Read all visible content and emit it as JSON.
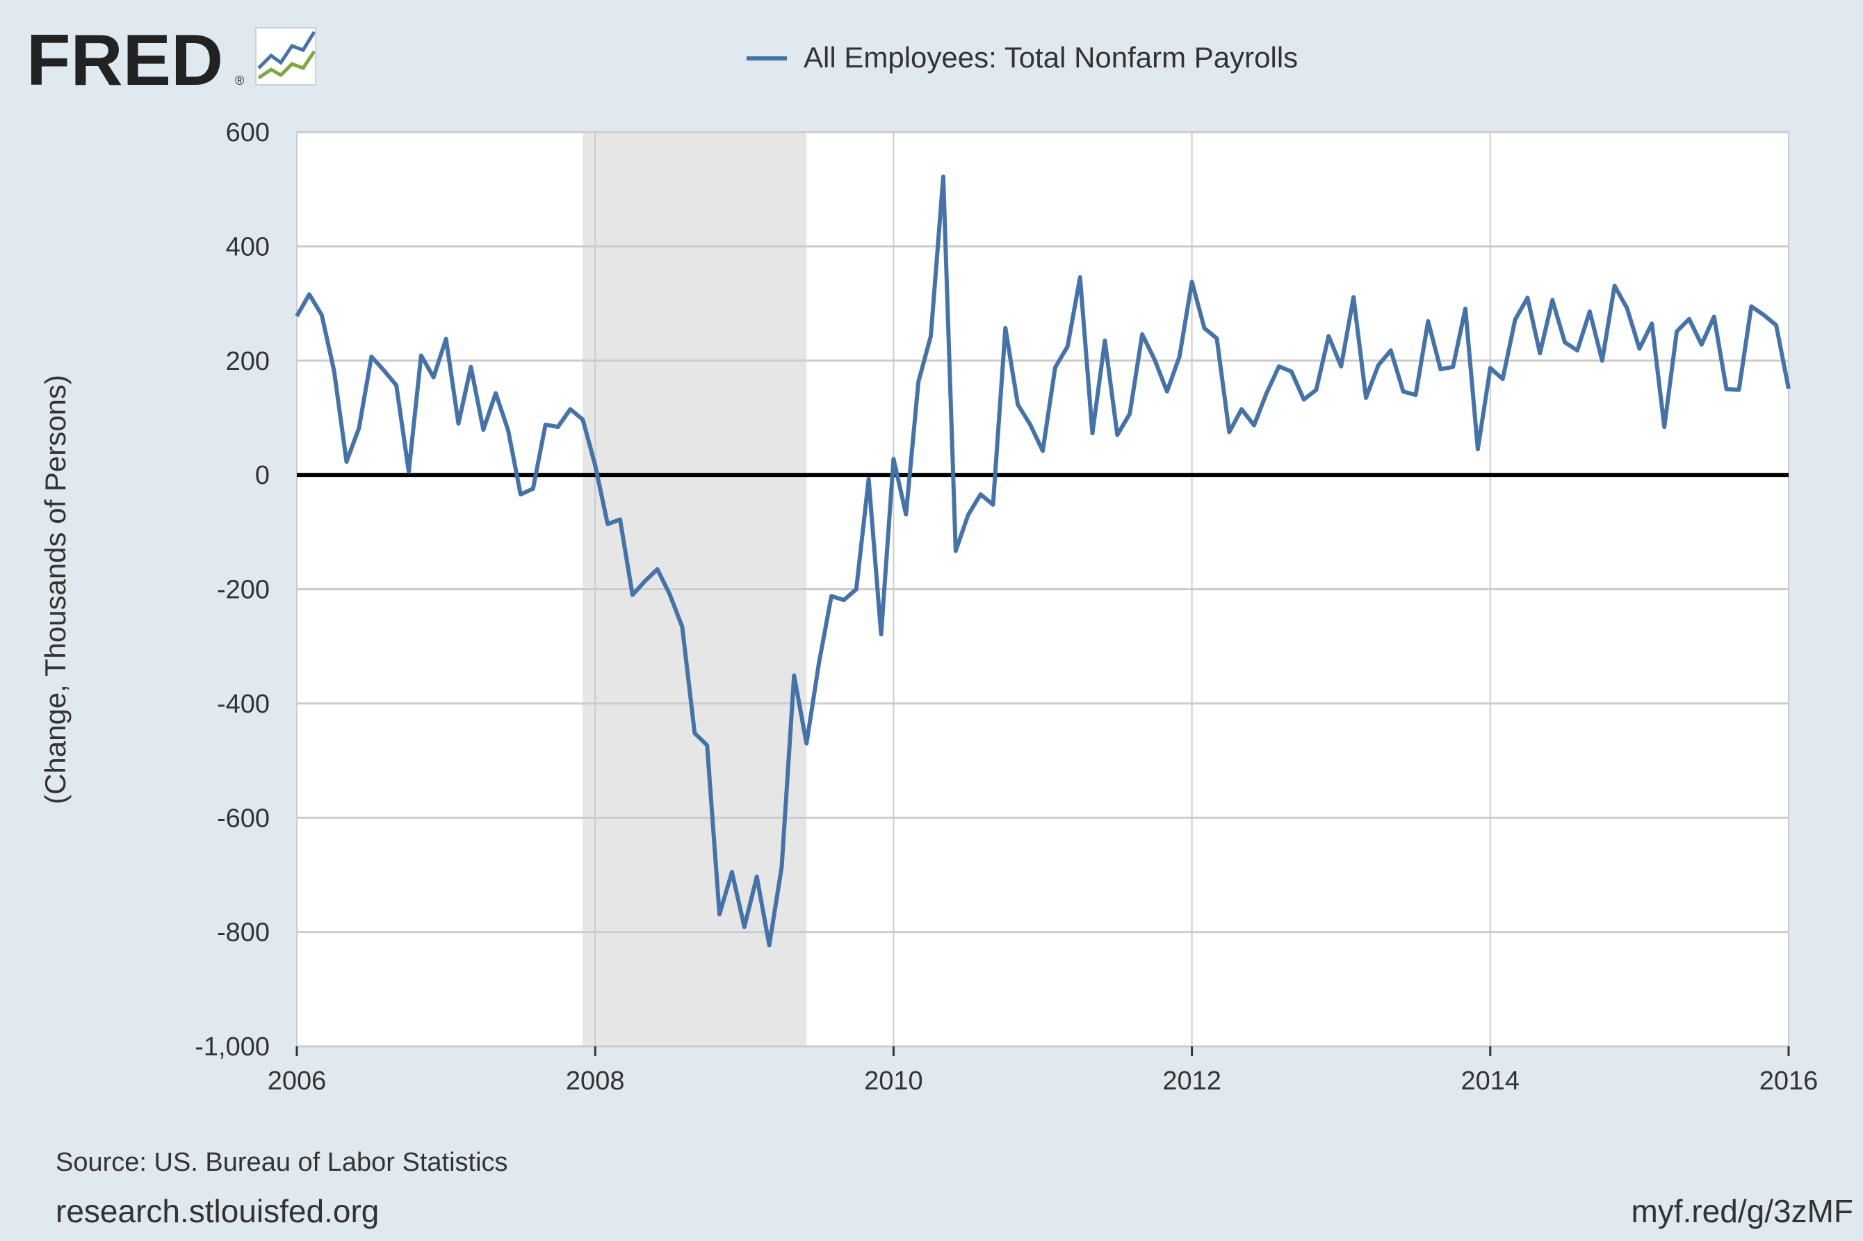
{
  "logo": {
    "text": "FRED",
    "registered": "®"
  },
  "legend": {
    "label": "All Employees: Total Nonfarm Payrolls",
    "color": "#4572a7"
  },
  "footer": {
    "source": "Source: US. Bureau of Labor Statistics",
    "site": "research.stlouisfed.org",
    "short_link": "myf.red/g/3zMF"
  },
  "chart_data": {
    "type": "line",
    "ylabel": "(Change, Thousands of Persons)",
    "xlim": [
      "2006-01",
      "2016-01"
    ],
    "ylim": [
      -1000,
      600
    ],
    "grid": true,
    "legend_position": "top-center",
    "x_ticks": [
      "2006",
      "2008",
      "2010",
      "2012",
      "2014",
      "2016"
    ],
    "y_ticks": [
      "600",
      "400",
      "200",
      "0",
      "-200",
      "-400",
      "-600",
      "-800",
      "-1,000"
    ],
    "y_tick_values": [
      600,
      400,
      200,
      0,
      -200,
      -400,
      -600,
      -800,
      -1000
    ],
    "zero_line": 0,
    "recession": {
      "start": "2007-12",
      "end": "2009-06",
      "color": "#e6e6e6"
    },
    "series": [
      {
        "name": "All Employees: Total Nonfarm Payrolls",
        "color": "#4572a7",
        "start": "2006-01",
        "frequency": "monthly",
        "values": [
          278,
          316,
          280,
          182,
          23,
          82,
          207,
          183,
          157,
          6,
          209,
          171,
          238,
          90,
          189,
          79,
          143,
          78,
          -34,
          -24,
          88,
          84,
          115,
          97,
          17,
          -86,
          -78,
          -210,
          -186,
          -165,
          -209,
          -266,
          -452,
          -473,
          -769,
          -695,
          -791,
          -703,
          -823,
          -686,
          -351,
          -470,
          -329,
          -212,
          -219,
          -200,
          -7,
          -279,
          28,
          -69,
          163,
          243,
          522,
          -133,
          -70,
          -34,
          -52,
          257,
          123,
          88,
          42,
          188,
          225,
          346,
          73,
          235,
          70,
          107,
          246,
          202,
          146,
          207,
          338,
          257,
          239,
          75,
          115,
          87,
          143,
          190,
          181,
          132,
          149,
          243,
          190,
          311,
          135,
          192,
          218,
          146,
          140,
          269,
          185,
          189,
          291,
          45,
          187,
          168,
          272,
          310,
          213,
          306,
          232,
          218,
          286,
          200,
          331,
          292,
          221,
          265,
          84,
          251,
          273,
          228,
          277,
          150,
          149,
          295,
          280,
          262,
          151
        ]
      }
    ]
  }
}
